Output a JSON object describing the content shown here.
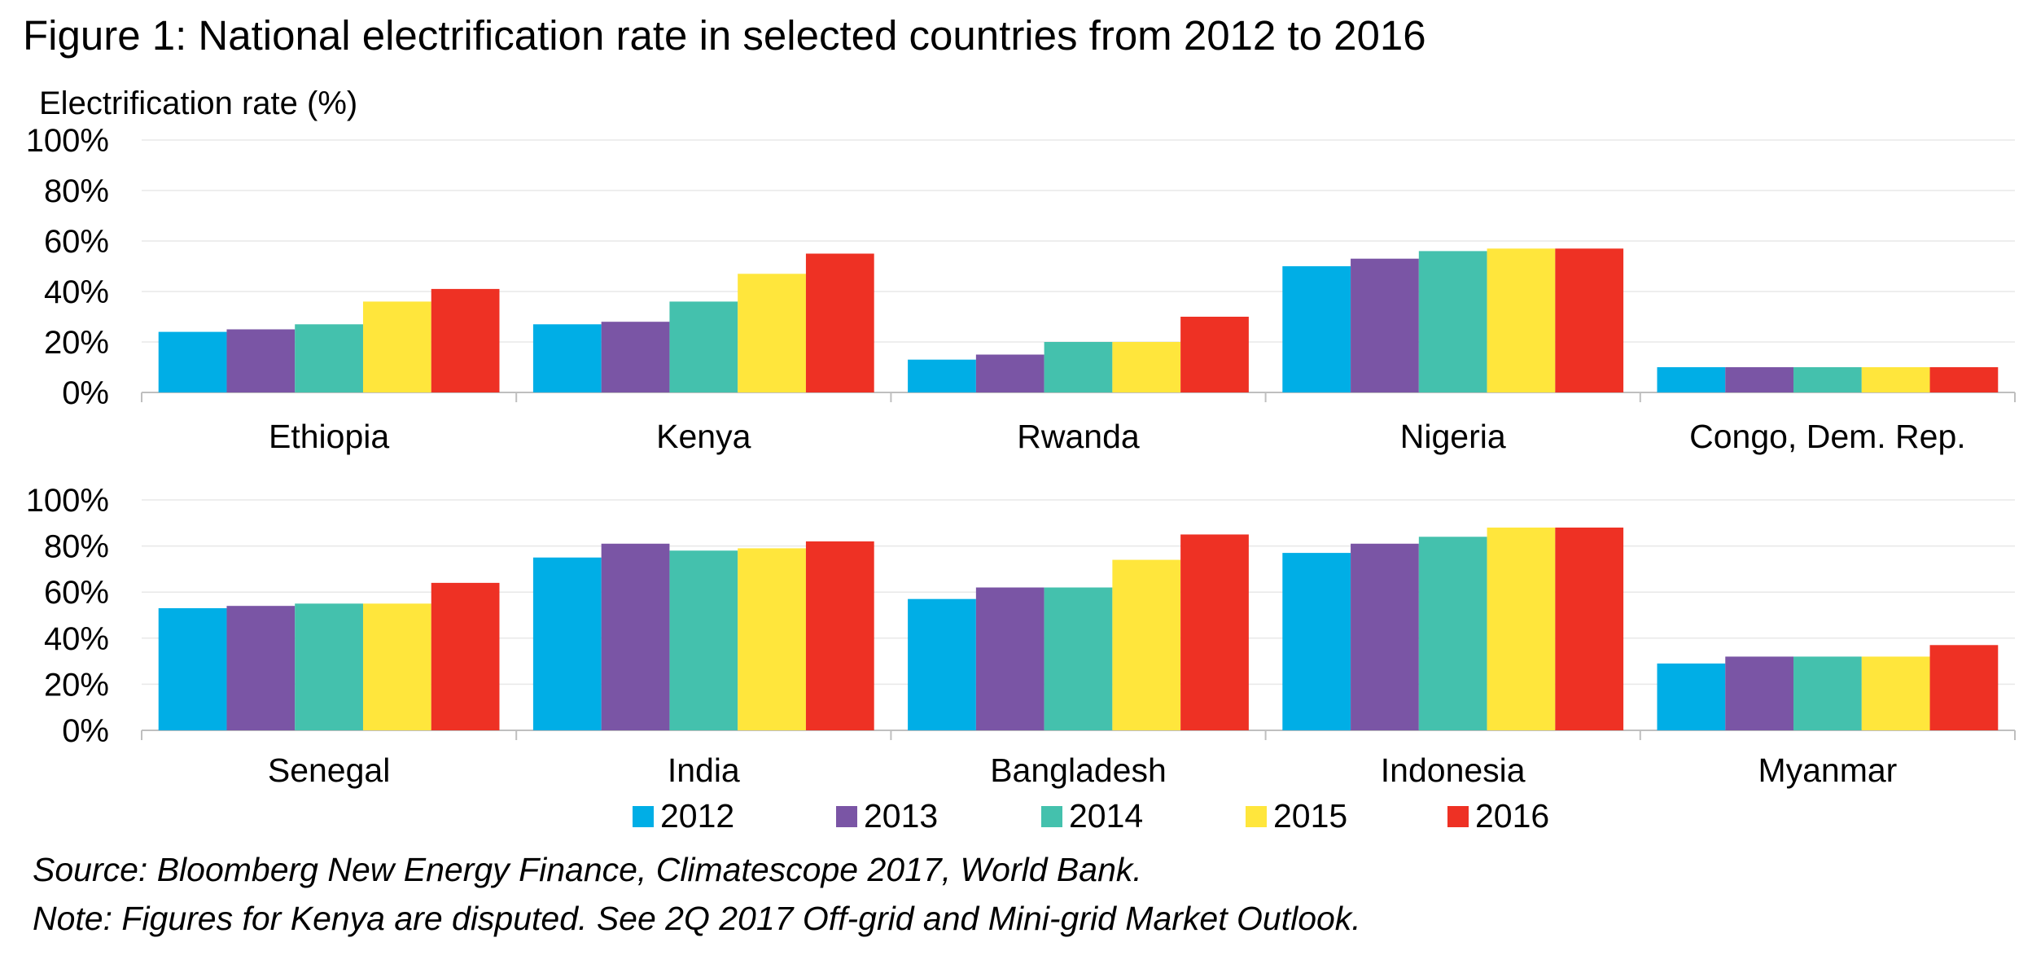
{
  "title": "Figure 1: National electrification rate in selected countries from 2012 to 2016",
  "source": "Source: Bloomberg New Energy Finance, Climatescope 2017, World Bank.",
  "note": "Note: Figures for Kenya are disputed. See 2Q 2017 Off-grid and Mini-grid Market Outlook.",
  "colors": {
    "2012": "#00aee6",
    "2013": "#7a55a5",
    "2014": "#44c1ad",
    "2015": "#ffe63c",
    "2016": "#ee3124",
    "grid": "#e8e8e8",
    "axis": "#bfbfbf"
  },
  "chart_data": [
    {
      "type": "bar",
      "ylabel": "Electrification rate (%)",
      "ylim": [
        0,
        100
      ],
      "y_ticks": [
        "0%",
        "20%",
        "40%",
        "60%",
        "80%",
        "100%"
      ],
      "grid": true,
      "categories": [
        "Ethiopia",
        "Kenya",
        "Rwanda",
        "Nigeria",
        "Congo, Dem. Rep."
      ],
      "series": [
        {
          "name": "2012",
          "values": [
            24,
            27,
            13,
            50,
            10
          ]
        },
        {
          "name": "2013",
          "values": [
            25,
            28,
            15,
            53,
            10
          ]
        },
        {
          "name": "2014",
          "values": [
            27,
            36,
            20,
            56,
            10
          ]
        },
        {
          "name": "2015",
          "values": [
            36,
            47,
            20,
            57,
            10
          ]
        },
        {
          "name": "2016",
          "values": [
            41,
            55,
            30,
            57,
            10
          ]
        }
      ]
    },
    {
      "type": "bar",
      "ylim": [
        0,
        100
      ],
      "y_ticks": [
        "0%",
        "20%",
        "40%",
        "60%",
        "80%",
        "100%"
      ],
      "grid": true,
      "categories": [
        "Senegal",
        "India",
        "Bangladesh",
        "Indonesia",
        "Myanmar"
      ],
      "series": [
        {
          "name": "2012",
          "values": [
            53,
            75,
            57,
            77,
            29
          ]
        },
        {
          "name": "2013",
          "values": [
            54,
            81,
            62,
            81,
            32
          ]
        },
        {
          "name": "2014",
          "values": [
            55,
            78,
            62,
            84,
            32
          ]
        },
        {
          "name": "2015",
          "values": [
            55,
            79,
            74,
            88,
            32
          ]
        },
        {
          "name": "2016",
          "values": [
            64,
            82,
            85,
            88,
            37
          ]
        }
      ]
    }
  ],
  "legend": [
    "2012",
    "2013",
    "2014",
    "2015",
    "2016"
  ]
}
